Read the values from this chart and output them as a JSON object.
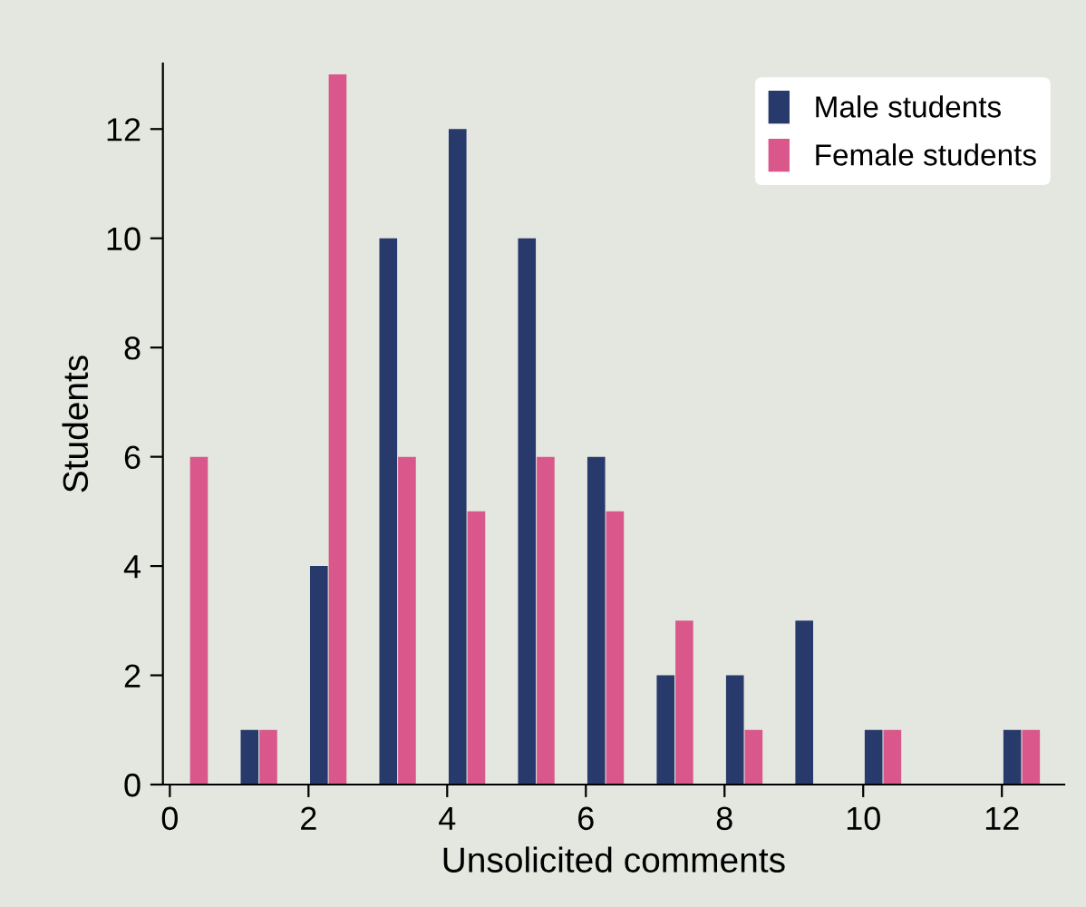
{
  "chart_data": {
    "type": "bar",
    "xlabel": "Unsolicited comments",
    "ylabel": "Students",
    "x": [
      0,
      1,
      2,
      3,
      4,
      5,
      6,
      7,
      8,
      9,
      10,
      11,
      12
    ],
    "series": [
      {
        "name": "Male students",
        "color": "#283a6b",
        "values": [
          0,
          1,
          4,
          10,
          12,
          10,
          6,
          2,
          2,
          3,
          1,
          0,
          1
        ]
      },
      {
        "name": "Female students",
        "color": "#d9578a",
        "values": [
          6,
          1,
          13,
          6,
          5,
          6,
          5,
          3,
          1,
          0,
          1,
          0,
          1
        ]
      }
    ],
    "xlim": [
      -0.1,
      12.9
    ],
    "ylim": [
      0,
      13.2
    ],
    "xticks": [
      0,
      2,
      4,
      6,
      8,
      10,
      12
    ],
    "yticks": [
      0,
      2,
      4,
      6,
      8,
      10,
      12
    ],
    "grid": false,
    "legend": "top right"
  }
}
